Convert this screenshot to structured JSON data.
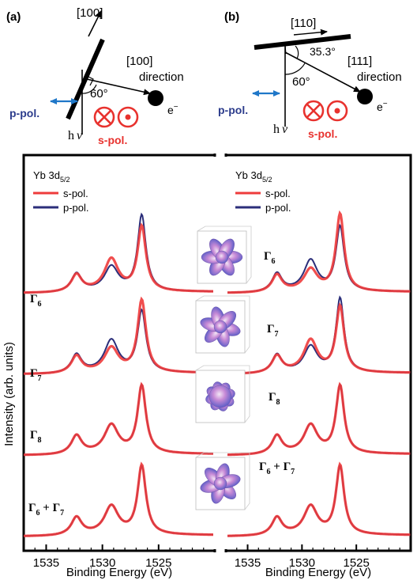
{
  "panel_labels": {
    "a": "(a)",
    "b": "(b)"
  },
  "geometry_a": {
    "surface_dir": "[100]",
    "emission_dir": "[100]",
    "emission_word": "direction",
    "angle": "60°",
    "electron": "e",
    "electron_sup": "−",
    "photon": "h",
    "photon_nu": "ν",
    "p_pol": "p-pol.",
    "s_pol": "s-pol."
  },
  "geometry_b": {
    "surface_dir": "[110]",
    "emission_dir": "[111]",
    "emission_word": "direction",
    "angle": "60°",
    "tilt_angle": "35.3°",
    "electron": "e",
    "electron_sup": "−",
    "photon": "h",
    "photon_nu": "ν",
    "p_pol": "p-pol.",
    "s_pol": "s-pol."
  },
  "colors": {
    "s_pol": "#ee3b3b",
    "p_pol": "#2b2e7a",
    "arrow_blue": "#1f77c8",
    "s_text": "#e8322e",
    "p_text": "#2c3c8c"
  },
  "ylabel": "Intensity (arb. units)",
  "chart_data": [
    {
      "type": "line",
      "panel": "a",
      "xlabel": "Binding Energy (eV)",
      "ylabel": "Intensity (arb. units)",
      "xlim": [
        1537,
        1520
      ],
      "xticks": [
        1535,
        1530,
        1525
      ],
      "x_reversed": true,
      "grid": false,
      "title": "Yb 3d",
      "title_sub": "5/2",
      "legend": {
        "placement": "top-left",
        "entries": [
          "s-pol.",
          "p-pol."
        ]
      },
      "states": [
        {
          "label": "Γ",
          "sub": "6",
          "offset": 0.75,
          "peaks": {
            "s-pol.": [
              0.26,
              0.5,
              1.0
            ],
            "p-pol.": [
              0.28,
              0.38,
              1.18
            ]
          }
        },
        {
          "label": "Γ",
          "sub": "7",
          "offset": 0.5,
          "peaks": {
            "s-pol.": [
              0.26,
              0.38,
              1.12
            ],
            "p-pol.": [
              0.28,
              0.5,
              0.95
            ]
          }
        },
        {
          "label": "Γ",
          "sub": "8",
          "offset": 0.25,
          "peaks": {
            "s-pol.": [
              0.28,
              0.44,
              1.05
            ],
            "p-pol.": [
              0.28,
              0.44,
              1.05
            ]
          }
        },
        {
          "label": "Γ",
          "sub": "6",
          "label2": "Γ",
          "sub2": "7",
          "offset": 0.0,
          "peaks": {
            "s-pol.": [
              0.27,
              0.44,
              1.07
            ],
            "p-pol.": [
              0.27,
              0.44,
              1.05
            ]
          }
        }
      ]
    },
    {
      "type": "line",
      "panel": "b",
      "xlabel": "Binding Energy (eV)",
      "xlim": [
        1537,
        1520
      ],
      "xticks": [
        1535,
        1530,
        1525
      ],
      "x_reversed": true,
      "grid": false,
      "title": "Yb 3d",
      "title_sub": "5/2",
      "legend": {
        "placement": "top-left",
        "entries": [
          "s-pol.",
          "p-pol."
        ]
      },
      "states": [
        {
          "label": "Γ",
          "sub": "6",
          "offset": 0.75,
          "peaks": {
            "s-pol.": [
              0.26,
              0.34,
              1.2
            ],
            "p-pol.": [
              0.28,
              0.48,
              1.0
            ]
          }
        },
        {
          "label": "Γ",
          "sub": "7",
          "offset": 0.5,
          "peaks": {
            "s-pol.": [
              0.26,
              0.5,
              1.02
            ],
            "p-pol.": [
              0.28,
              0.4,
              1.15
            ]
          }
        },
        {
          "label": "Γ",
          "sub": "8",
          "offset": 0.25,
          "peaks": {
            "s-pol.": [
              0.28,
              0.44,
              1.05
            ],
            "p-pol.": [
              0.28,
              0.44,
              1.05
            ]
          }
        },
        {
          "label": "Γ",
          "sub": "6",
          "label2": "Γ",
          "sub2": "7",
          "offset": 0.0,
          "peaks": {
            "s-pol.": [
              0.27,
              0.44,
              1.07
            ],
            "p-pol.": [
              0.27,
              0.44,
              1.05
            ]
          }
        }
      ],
      "peak_positions_eV": [
        1532.3,
        1529.2,
        1526.5
      ]
    }
  ]
}
